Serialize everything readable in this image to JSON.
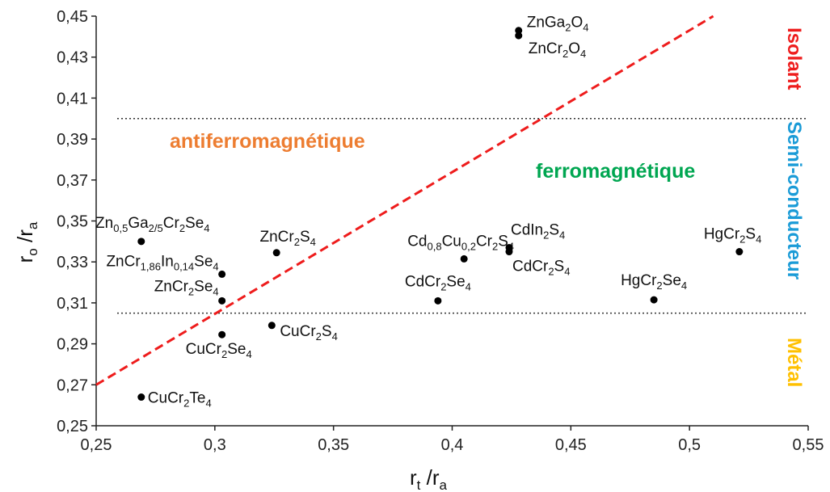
{
  "chart_data": {
    "type": "scatter",
    "xlabel": "r_t / r_a",
    "ylabel": "r_o / r_a",
    "xlim": [
      0.25,
      0.55
    ],
    "ylim": [
      0.25,
      0.45
    ],
    "x_ticks": [
      "0,25",
      "0,3",
      "0,35",
      "0,4",
      "0,45",
      "0,5",
      "0,55"
    ],
    "y_ticks": [
      "0,25",
      "0,27",
      "0,29",
      "0,31",
      "0,33",
      "0,35",
      "0,37",
      "0,39",
      "0,41",
      "0,43",
      "0,45"
    ],
    "grid": false,
    "points": [
      {
        "label": "ZnGa2O4",
        "x": 0.428,
        "y": 0.443
      },
      {
        "label": "ZnCr2O4",
        "x": 0.428,
        "y": 0.4405
      },
      {
        "label": "Zn0,5Ga2/5Cr2Se4",
        "x": 0.269,
        "y": 0.34
      },
      {
        "label": "ZnCr1,86In0,14Se4",
        "x": 0.303,
        "y": 0.324
      },
      {
        "label": "ZnCr2S4",
        "x": 0.326,
        "y": 0.3345
      },
      {
        "label": "ZnCr2Se4",
        "x": 0.303,
        "y": 0.311
      },
      {
        "label": "CuCr2S4",
        "x": 0.324,
        "y": 0.299
      },
      {
        "label": "CuCr2Se4",
        "x": 0.303,
        "y": 0.2945
      },
      {
        "label": "CuCr2Te4",
        "x": 0.269,
        "y": 0.264
      },
      {
        "label": "Cd0,8Cu0,2Cr2S4",
        "x": 0.405,
        "y": 0.3315
      },
      {
        "label": "CdIn2S4",
        "x": 0.424,
        "y": 0.337
      },
      {
        "label": "CdCr2S4",
        "x": 0.424,
        "y": 0.335
      },
      {
        "label": "CdCr2Se4",
        "x": 0.394,
        "y": 0.311
      },
      {
        "label": "HgCr2S4",
        "x": 0.521,
        "y": 0.335
      },
      {
        "label": "HgCr2Se4",
        "x": 0.485,
        "y": 0.3115
      }
    ],
    "diagonal_line": {
      "x": [
        0.25,
        0.51
      ],
      "y": [
        0.27,
        0.45
      ],
      "color": "#ee1c1c",
      "style": "dashed"
    },
    "horizontal_lines": [
      0.4,
      0.305
    ],
    "regions": [
      {
        "text": "antiferromagnétique",
        "color": "#ed7d31"
      },
      {
        "text": "ferromagnétique",
        "color": "#00a651"
      }
    ],
    "side_labels": [
      {
        "text": "Isolant",
        "color": "#ee1c1c"
      },
      {
        "text": "Semi-conducteur",
        "color": "#1a9bd7"
      },
      {
        "text": "Métal",
        "color": "#ffc000"
      }
    ]
  }
}
